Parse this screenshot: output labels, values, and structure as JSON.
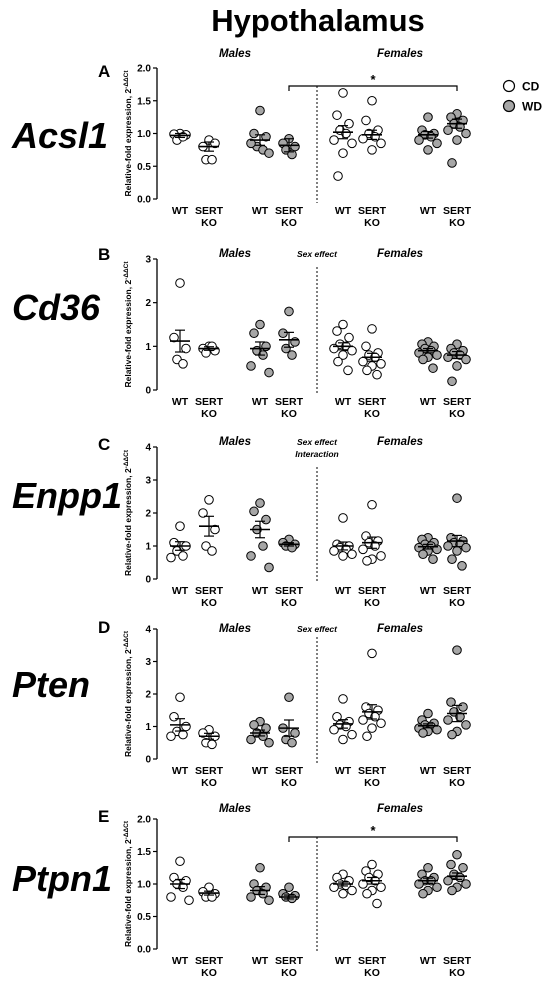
{
  "figure": {
    "title": "Hypothalamus",
    "ylabel_prefix": "Relative-fold expression, 2",
    "ylabel_sup": "-ΔΔCt",
    "legend": [
      {
        "label": "CD",
        "fill": "#ffffff"
      },
      {
        "label": "WD",
        "fill": "#a6a6a6"
      }
    ],
    "colors": {
      "CD": "#ffffff",
      "WD": "#a6a6a6",
      "stroke": "#000000"
    },
    "groups": [
      {
        "top": "WT",
        "bottom": ""
      },
      {
        "top": "SERT",
        "bottom": "KO"
      },
      {
        "top": "WT",
        "bottom": ""
      },
      {
        "top": "SERT",
        "bottom": "KO"
      },
      {
        "top": "WT",
        "bottom": ""
      },
      {
        "top": "SERT",
        "bottom": "KO"
      },
      {
        "top": "WT",
        "bottom": ""
      },
      {
        "top": "SERT",
        "bottom": "KO"
      }
    ],
    "group_diet": [
      "CD",
      "CD",
      "WD",
      "WD",
      "CD",
      "CD",
      "WD",
      "WD"
    ]
  },
  "chart_data": [
    {
      "type": "scatter",
      "letter": "A",
      "gene": "Acsl1",
      "males_label": "Males",
      "females_label": "Females",
      "annotations": [],
      "bracket": {
        "from_group": 4,
        "to_group": 8,
        "label": "*"
      },
      "ylim": [
        0,
        2.0
      ],
      "yticks": [
        "0.0",
        "0.5",
        "1.0",
        "1.5",
        "2.0"
      ],
      "series": [
        {
          "points": [
            1.0,
            0.99,
            0.98,
            0.9,
            0.95
          ],
          "mean": 0.97,
          "sem": 0.03
        },
        {
          "points": [
            0.9,
            0.8,
            0.85,
            0.6,
            0.6
          ],
          "mean": 0.8,
          "sem": 0.07
        },
        {
          "points": [
            1.35,
            1.0,
            0.95,
            0.8,
            0.75,
            0.85,
            0.7
          ],
          "mean": 0.9,
          "sem": 0.08
        },
        {
          "points": [
            0.92,
            0.85,
            0.8,
            0.75,
            0.68
          ],
          "mean": 0.82,
          "sem": 0.1
        },
        {
          "points": [
            1.62,
            1.28,
            1.15,
            1.05,
            1.0,
            0.9,
            0.85,
            0.7,
            0.35
          ],
          "mean": 1.02,
          "sem": 0.1
        },
        {
          "points": [
            1.5,
            1.2,
            1.05,
            1.0,
            0.95,
            0.92,
            0.85,
            0.75
          ],
          "mean": 0.98,
          "sem": 0.07
        },
        {
          "points": [
            1.25,
            1.05,
            1.0,
            0.98,
            0.95,
            0.9,
            0.85,
            0.75
          ],
          "mean": 0.98,
          "sem": 0.05
        },
        {
          "points": [
            1.3,
            1.25,
            1.2,
            1.15,
            1.1,
            1.05,
            1.0,
            0.9,
            0.55
          ],
          "mean": 1.15,
          "sem": 0.07
        }
      ]
    },
    {
      "type": "scatter",
      "letter": "B",
      "gene": "Cd36",
      "males_label": "Males",
      "females_label": "Females",
      "annotations": [
        "Sex effect"
      ],
      "bracket": null,
      "ylim": [
        0,
        3
      ],
      "yticks": [
        "0",
        "1",
        "2",
        "3"
      ],
      "series": [
        {
          "points": [
            2.45,
            1.2,
            0.95,
            0.7,
            0.6
          ],
          "mean": 1.12,
          "sem": 0.25
        },
        {
          "points": [
            1.0,
            0.95,
            0.9,
            0.85,
            1.0
          ],
          "mean": 0.95,
          "sem": 0.04
        },
        {
          "points": [
            1.5,
            1.3,
            1.0,
            0.9,
            0.8,
            0.55,
            0.4
          ],
          "mean": 0.95,
          "sem": 0.15
        },
        {
          "points": [
            1.8,
            1.3,
            1.1,
            0.95,
            0.8
          ],
          "mean": 1.15,
          "sem": 0.17
        },
        {
          "points": [
            1.5,
            1.35,
            1.2,
            1.05,
            1.0,
            0.95,
            0.9,
            0.8,
            0.65,
            0.45
          ],
          "mean": 1.0,
          "sem": 0.08
        },
        {
          "points": [
            1.4,
            1.0,
            0.85,
            0.8,
            0.75,
            0.65,
            0.6,
            0.55,
            0.45,
            0.35
          ],
          "mean": 0.75,
          "sem": 0.09
        },
        {
          "points": [
            1.1,
            1.05,
            1.0,
            0.95,
            0.9,
            0.85,
            0.8,
            0.75,
            0.7,
            0.5
          ],
          "mean": 0.9,
          "sem": 0.05
        },
        {
          "points": [
            1.05,
            0.95,
            0.9,
            0.85,
            0.8,
            0.75,
            0.7,
            0.55,
            0.2
          ],
          "mean": 0.8,
          "sem": 0.08
        }
      ]
    },
    {
      "type": "scatter",
      "letter": "C",
      "gene": "Enpp1",
      "males_label": "Males",
      "females_label": "Females",
      "annotations": [
        "Sex effect",
        "Interaction"
      ],
      "bracket": null,
      "ylim": [
        0,
        4
      ],
      "yticks": [
        "0",
        "1",
        "2",
        "3",
        "4"
      ],
      "series": [
        {
          "points": [
            1.6,
            1.1,
            1.0,
            0.85,
            0.7,
            0.65
          ],
          "mean": 1.0,
          "sem": 0.13
        },
        {
          "points": [
            2.4,
            2.0,
            1.5,
            1.0,
            0.85
          ],
          "mean": 1.6,
          "sem": 0.3
        },
        {
          "points": [
            2.3,
            2.05,
            1.8,
            1.5,
            1.0,
            0.7,
            0.35
          ],
          "mean": 1.5,
          "sem": 0.25
        },
        {
          "points": [
            1.2,
            1.1,
            1.05,
            1.0,
            0.95
          ],
          "mean": 1.05,
          "sem": 0.05
        },
        {
          "points": [
            1.85,
            1.05,
            1.0,
            0.95,
            0.9,
            0.85,
            0.75,
            0.7
          ],
          "mean": 1.0,
          "sem": 0.12
        },
        {
          "points": [
            2.25,
            1.3,
            1.15,
            1.1,
            1.0,
            0.9,
            0.7,
            0.6,
            0.55
          ],
          "mean": 1.1,
          "sem": 0.17
        },
        {
          "points": [
            1.25,
            1.2,
            1.1,
            1.05,
            1.0,
            0.95,
            0.9,
            0.85,
            0.75,
            0.6
          ],
          "mean": 0.98,
          "sem": 0.07
        },
        {
          "points": [
            2.45,
            1.25,
            1.15,
            1.1,
            1.05,
            1.0,
            0.95,
            0.85,
            0.6,
            0.4
          ],
          "mean": 1.15,
          "sem": 0.17
        }
      ]
    },
    {
      "type": "scatter",
      "letter": "D",
      "gene": "Pten",
      "males_label": "Males",
      "females_label": "Females",
      "annotations": [
        "Sex effect"
      ],
      "bracket": null,
      "ylim": [
        0,
        4
      ],
      "yticks": [
        "0",
        "1",
        "2",
        "3",
        "4"
      ],
      "series": [
        {
          "points": [
            1.9,
            1.3,
            1.0,
            0.85,
            0.75,
            0.7
          ],
          "mean": 1.05,
          "sem": 0.19
        },
        {
          "points": [
            0.9,
            0.8,
            0.7,
            0.5,
            0.45
          ],
          "mean": 0.7,
          "sem": 0.09
        },
        {
          "points": [
            1.15,
            1.05,
            0.95,
            0.8,
            0.7,
            0.6,
            0.5
          ],
          "mean": 0.8,
          "sem": 0.09
        },
        {
          "points": [
            1.9,
            0.95,
            0.8,
            0.6,
            0.5
          ],
          "mean": 0.95,
          "sem": 0.25
        },
        {
          "points": [
            1.85,
            1.3,
            1.15,
            1.05,
            1.0,
            0.9,
            0.75,
            0.6
          ],
          "mean": 1.08,
          "sem": 0.13
        },
        {
          "points": [
            3.25,
            1.6,
            1.5,
            1.4,
            1.3,
            1.2,
            1.1,
            0.95,
            0.7
          ],
          "mean": 1.45,
          "sem": 0.22
        },
        {
          "points": [
            1.4,
            1.2,
            1.1,
            1.05,
            1.0,
            0.95,
            0.9,
            0.85,
            0.8
          ],
          "mean": 1.02,
          "sem": 0.06
        },
        {
          "points": [
            3.35,
            1.75,
            1.6,
            1.45,
            1.3,
            1.2,
            1.05,
            0.85,
            0.75
          ],
          "mean": 1.4,
          "sem": 0.25
        }
      ]
    },
    {
      "type": "scatter",
      "letter": "E",
      "gene": "Ptpn1",
      "males_label": "Males",
      "females_label": "Females",
      "annotations": [],
      "bracket": {
        "from_group": 4,
        "to_group": 8,
        "label": "*"
      },
      "ylim": [
        0,
        2.0
      ],
      "yticks": [
        "0.0",
        "0.5",
        "1.0",
        "1.5",
        "2.0"
      ],
      "series": [
        {
          "points": [
            1.35,
            1.1,
            1.05,
            1.0,
            0.95,
            0.8,
            0.75
          ],
          "mean": 1.0,
          "sem": 0.07
        },
        {
          "points": [
            0.95,
            0.88,
            0.85,
            0.8,
            0.8
          ],
          "mean": 0.86,
          "sem": 0.03
        },
        {
          "points": [
            1.25,
            1.0,
            0.95,
            0.9,
            0.85,
            0.8,
            0.75
          ],
          "mean": 0.9,
          "sem": 0.06
        },
        {
          "points": [
            0.95,
            0.85,
            0.82,
            0.8,
            0.78
          ],
          "mean": 0.8,
          "sem": 0.03
        },
        {
          "points": [
            1.15,
            1.1,
            1.05,
            1.0,
            0.98,
            0.95,
            0.9,
            0.85
          ],
          "mean": 1.0,
          "sem": 0.03
        },
        {
          "points": [
            1.3,
            1.2,
            1.15,
            1.1,
            1.05,
            1.0,
            0.95,
            0.9,
            0.85,
            0.7
          ],
          "mean": 1.05,
          "sem": 0.05
        },
        {
          "points": [
            1.25,
            1.15,
            1.1,
            1.05,
            1.05,
            1.0,
            0.95,
            0.9,
            0.85
          ],
          "mean": 1.05,
          "sem": 0.04
        },
        {
          "points": [
            1.45,
            1.3,
            1.25,
            1.15,
            1.1,
            1.05,
            1.0,
            0.95,
            0.9
          ],
          "mean": 1.12,
          "sem": 0.05
        }
      ]
    }
  ]
}
